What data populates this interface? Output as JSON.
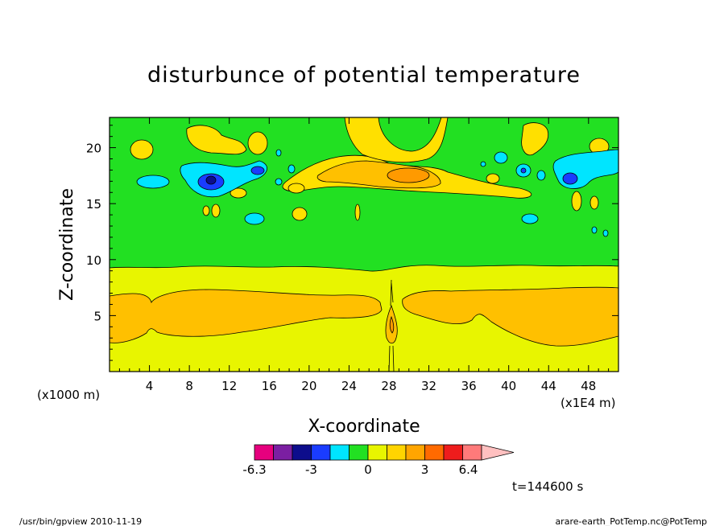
{
  "chart_data": {
    "type": "heatmap",
    "title": "disturbunce of potential temperature",
    "xlabel": "X-coordinate",
    "ylabel": "Z-coordinate",
    "x_unit": "(x1E4 m)",
    "z_unit": "(x1000 m)",
    "xlim": [
      0,
      51
    ],
    "ylim": [
      0,
      22.7
    ],
    "x_ticks": [
      4,
      8,
      12,
      16,
      20,
      24,
      28,
      32,
      36,
      40,
      44,
      48
    ],
    "y_ticks": [
      5,
      10,
      15,
      20
    ],
    "colorbar": {
      "labels": [
        "-6.3",
        "-3",
        "0",
        "3",
        "6.4"
      ],
      "colors": [
        "#e6007e",
        "#7b1fa2",
        "#0d0d8c",
        "#1a3cff",
        "#00e5ff",
        "#22e022",
        "#e8f500",
        "#ffd400",
        "#ffa500",
        "#ff6a00",
        "#ee1c1c",
        "#ff7a7a",
        "#ffc0c0"
      ]
    },
    "field_description": "Stratified field: yellow-green layer with orange band at Z 3-7.5, green region above ~9.5, patchy orange/blue anomalies at Z 15-20.",
    "time_label": "t=144600 s"
  },
  "footer": {
    "left": "/usr/bin/gpview   2010-11-19",
    "right": "arare-earth_PotTemp.nc@PotTemp"
  },
  "colors": {
    "green": "#22e022",
    "yellow": "#e8f500",
    "light_yellow": "#ffe000",
    "orange": "#ffc000",
    "dark_orange": "#ff9a00",
    "cyan": "#00e5ff",
    "blue": "#1a3cff",
    "navy": "#0d0d8c"
  }
}
